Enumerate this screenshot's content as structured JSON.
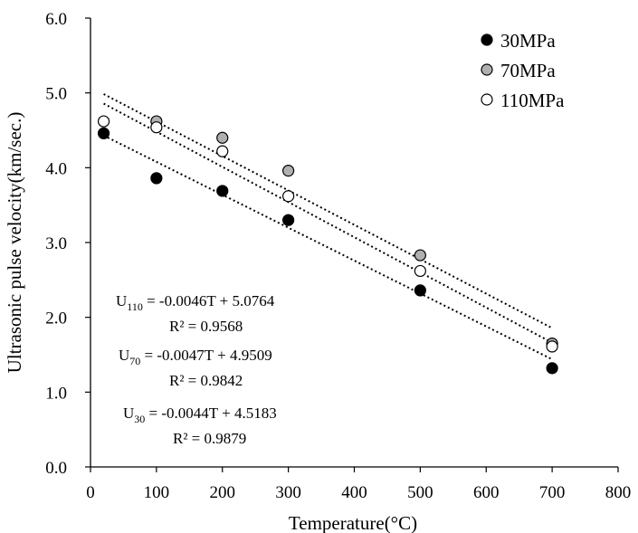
{
  "chart_data": {
    "type": "scatter",
    "title": "",
    "xlabel": "Temperature(°C)",
    "ylabel": "Ultrasonic pulse velocity(km/sec.)",
    "xlim": [
      0,
      800
    ],
    "ylim": [
      0,
      6
    ],
    "x_ticks": [
      "0",
      "100",
      "200",
      "300",
      "400",
      "500",
      "600",
      "700",
      "800"
    ],
    "y_ticks": [
      "0.0",
      "1.0",
      "2.0",
      "3.0",
      "4.0",
      "5.0",
      "6.0"
    ],
    "grid": false,
    "legend_position": "top-right",
    "series": [
      {
        "name": "30MPa",
        "marker": "filled-black",
        "color": "#000000",
        "points": [
          [
            20,
            4.46
          ],
          [
            100,
            3.86
          ],
          [
            200,
            3.69
          ],
          [
            300,
            3.3
          ],
          [
            500,
            2.36
          ],
          [
            700,
            1.32
          ]
        ],
        "trend": {
          "slope": -0.0044,
          "intercept": 4.5183,
          "from": 20,
          "to": 700
        }
      },
      {
        "name": "70MPa",
        "marker": "filled-gray",
        "color": "#b0b0b0",
        "points": [
          [
            100,
            4.62
          ],
          [
            200,
            4.4
          ],
          [
            300,
            3.96
          ],
          [
            500,
            2.83
          ],
          [
            700,
            1.65
          ]
        ],
        "trend": {
          "slope": -0.0047,
          "intercept": 4.9509,
          "from": 20,
          "to": 700
        }
      },
      {
        "name": "110MPa",
        "marker": "open-white",
        "color": "#ffffff",
        "points": [
          [
            20,
            4.62
          ],
          [
            100,
            4.54
          ],
          [
            200,
            4.22
          ],
          [
            300,
            3.62
          ],
          [
            500,
            2.62
          ],
          [
            700,
            1.61
          ]
        ],
        "trend": {
          "slope": -0.0046,
          "intercept": 5.0764,
          "from": 20,
          "to": 700
        }
      }
    ],
    "annotations": [
      {
        "id": "eq110",
        "prefix": "U",
        "subscript": "110",
        "equation": " = -0.0046T + 5.0764",
        "r2": "R² = 0.9568"
      },
      {
        "id": "eq70",
        "prefix": "U",
        "subscript": "70",
        "equation": " = -0.0047T + 4.9509",
        "r2": "R² = 0.9842"
      },
      {
        "id": "eq30",
        "prefix": "U",
        "subscript": "30",
        "equation": " = -0.0044T + 4.5183",
        "r2": "R² = 0.9879"
      }
    ]
  }
}
